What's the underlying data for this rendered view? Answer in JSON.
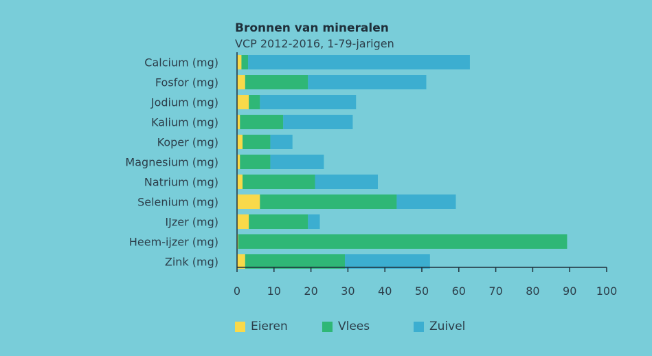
{
  "chart_data": {
    "type": "bar",
    "orientation": "horizontal",
    "stacked": true,
    "title": "Bronnen van mineralen",
    "subtitle": "VCP 2012-2016, 1-79-jarigen",
    "categories": [
      "Calcium (mg)",
      "Fosfor (mg)",
      "Jodium (mg)",
      "Kalium (mg)",
      "Koper (mg)",
      "Magnesium (mg)",
      "Natrium (mg)",
      "Selenium (mg)",
      "IJzer (mg)",
      "Heem-ijzer (mg)",
      "Zink (mg)"
    ],
    "series": [
      {
        "name": "Eieren",
        "color": "#f9d94a",
        "values": [
          1.2,
          2.2,
          3.2,
          0.8,
          1.5,
          0.8,
          1.5,
          6.2,
          3.2,
          0.3,
          2.2
        ]
      },
      {
        "name": "Vlees",
        "color": "#2fb776",
        "values": [
          1.8,
          17.0,
          3.0,
          11.7,
          7.5,
          8.2,
          19.6,
          37.0,
          16.0,
          89.0,
          27.0
        ]
      },
      {
        "name": "Zuivel",
        "color": "#3caed0",
        "values": [
          60.0,
          32.0,
          26.0,
          18.8,
          6.0,
          14.5,
          17.0,
          16.0,
          3.2,
          0.0,
          23.0
        ]
      }
    ],
    "xticks": [
      "0",
      "10",
      "20",
      "30",
      "40",
      "50",
      "60",
      "70",
      "80",
      "90",
      "100"
    ],
    "xlim": [
      0,
      100
    ],
    "xlabel": "",
    "ylabel": "",
    "grid": false,
    "legend_position": "bottom-left"
  }
}
